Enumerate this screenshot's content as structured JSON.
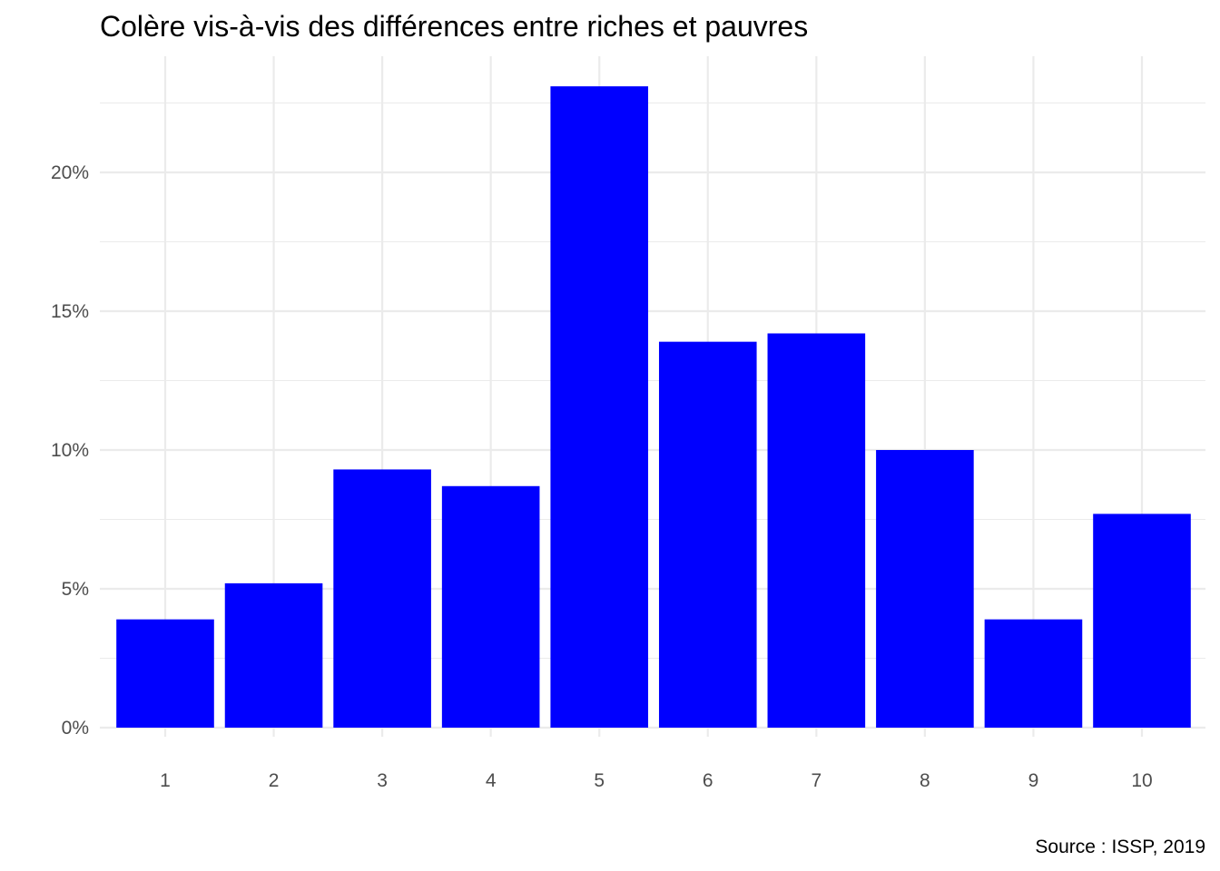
{
  "chart_data": {
    "type": "bar",
    "title": "Colère vis-à-vis des différences entre riches et pauvres",
    "caption": "Source : ISSP, 2019",
    "xlabel": "",
    "ylabel": "",
    "categories": [
      "1",
      "2",
      "3",
      "4",
      "5",
      "6",
      "7",
      "8",
      "9",
      "10"
    ],
    "values": [
      3.9,
      5.2,
      9.3,
      8.7,
      23.1,
      13.9,
      14.2,
      10.0,
      3.9,
      7.7
    ],
    "value_unit": "percent",
    "ylim": [
      0,
      23.1
    ],
    "y_ticks": [
      0,
      5,
      10,
      15,
      20
    ],
    "y_tick_labels": [
      "0%",
      "5%",
      "10%",
      "15%",
      "20%"
    ],
    "y_minor_ticks": [
      2.5,
      7.5,
      12.5,
      17.5,
      22.5
    ],
    "grid": true,
    "legend": "none",
    "colors": {
      "bar": "#0000ff",
      "grid": "#ebebeb",
      "tick_text": "#4d4d4d",
      "title_text": "#000000",
      "background": "#ffffff"
    }
  }
}
